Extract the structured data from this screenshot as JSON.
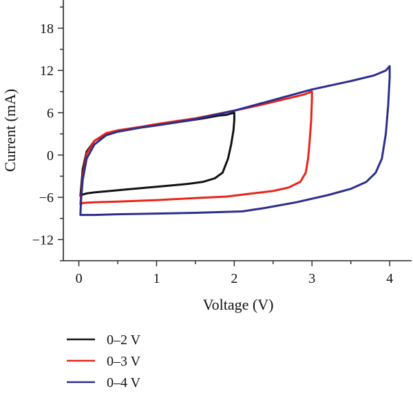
{
  "chart_data": {
    "type": "line",
    "xlabel": "Voltage (V)",
    "ylabel": "Current (mA)",
    "xlim": [
      -0.2,
      4.3
    ],
    "ylim": [
      -15,
      22
    ],
    "x_ticks": [
      0,
      1,
      2,
      3,
      4
    ],
    "y_ticks": [
      -12,
      -6,
      0,
      6,
      12,
      18
    ],
    "grid": false,
    "legend_position": "bottom-left",
    "series": [
      {
        "name": "0–2 V",
        "color": "#111111",
        "x": [
          0.02,
          0.03,
          0.05,
          0.1,
          0.2,
          0.35,
          0.5,
          0.8,
          1.0,
          1.3,
          1.6,
          1.8,
          1.9,
          1.96,
          2.0,
          2.0,
          1.99,
          1.96,
          1.92,
          1.85,
          1.75,
          1.6,
          1.4,
          1.2,
          1.0,
          0.8,
          0.6,
          0.4,
          0.2,
          0.1,
          0.05,
          0.02
        ],
        "y": [
          -5.8,
          -4.5,
          -2.0,
          0.5,
          2.0,
          3.0,
          3.4,
          3.9,
          4.2,
          4.7,
          5.2,
          5.6,
          5.7,
          5.9,
          6.0,
          5.0,
          3.5,
          1.5,
          -0.5,
          -2.5,
          -3.3,
          -3.8,
          -4.1,
          -4.3,
          -4.5,
          -4.7,
          -4.9,
          -5.1,
          -5.3,
          -5.45,
          -5.6,
          -5.8
        ]
      },
      {
        "name": "0–3 V",
        "color": "#e8231b",
        "x": [
          0.02,
          0.03,
          0.05,
          0.1,
          0.2,
          0.35,
          0.5,
          0.8,
          1.0,
          1.5,
          2.0,
          2.3,
          2.6,
          2.9,
          3.0,
          3.0,
          2.99,
          2.97,
          2.95,
          2.92,
          2.85,
          2.7,
          2.5,
          2.2,
          1.9,
          1.5,
          1.0,
          0.5,
          0.2,
          0.05,
          0.02
        ],
        "y": [
          -7.0,
          -5.5,
          -3.0,
          0.2,
          2.0,
          3.1,
          3.5,
          4.0,
          4.4,
          5.2,
          6.3,
          7.0,
          7.8,
          8.6,
          9.0,
          8.0,
          5.0,
          2.0,
          -0.5,
          -2.5,
          -3.8,
          -4.6,
          -5.1,
          -5.5,
          -5.9,
          -6.1,
          -6.4,
          -6.6,
          -6.7,
          -6.8,
          -7.0
        ]
      },
      {
        "name": "0–4 V",
        "color": "#2b2e8f",
        "x": [
          0.02,
          0.03,
          0.05,
          0.1,
          0.2,
          0.35,
          0.5,
          0.8,
          1.0,
          1.5,
          2.0,
          2.5,
          3.0,
          3.5,
          3.8,
          3.95,
          4.0,
          4.0,
          3.98,
          3.95,
          3.9,
          3.82,
          3.7,
          3.5,
          3.2,
          2.8,
          2.4,
          2.1,
          1.5,
          1.0,
          0.5,
          0.2,
          0.05,
          0.02
        ],
        "y": [
          -8.5,
          -6.0,
          -3.5,
          -0.5,
          1.5,
          2.8,
          3.3,
          3.9,
          4.2,
          5.1,
          6.3,
          7.8,
          9.3,
          10.5,
          11.3,
          12.0,
          12.6,
          11.0,
          7.0,
          3.0,
          -0.5,
          -2.5,
          -3.8,
          -4.8,
          -5.7,
          -6.7,
          -7.5,
          -8.0,
          -8.2,
          -8.3,
          -8.4,
          -8.5,
          -8.5,
          -8.5
        ]
      }
    ]
  }
}
